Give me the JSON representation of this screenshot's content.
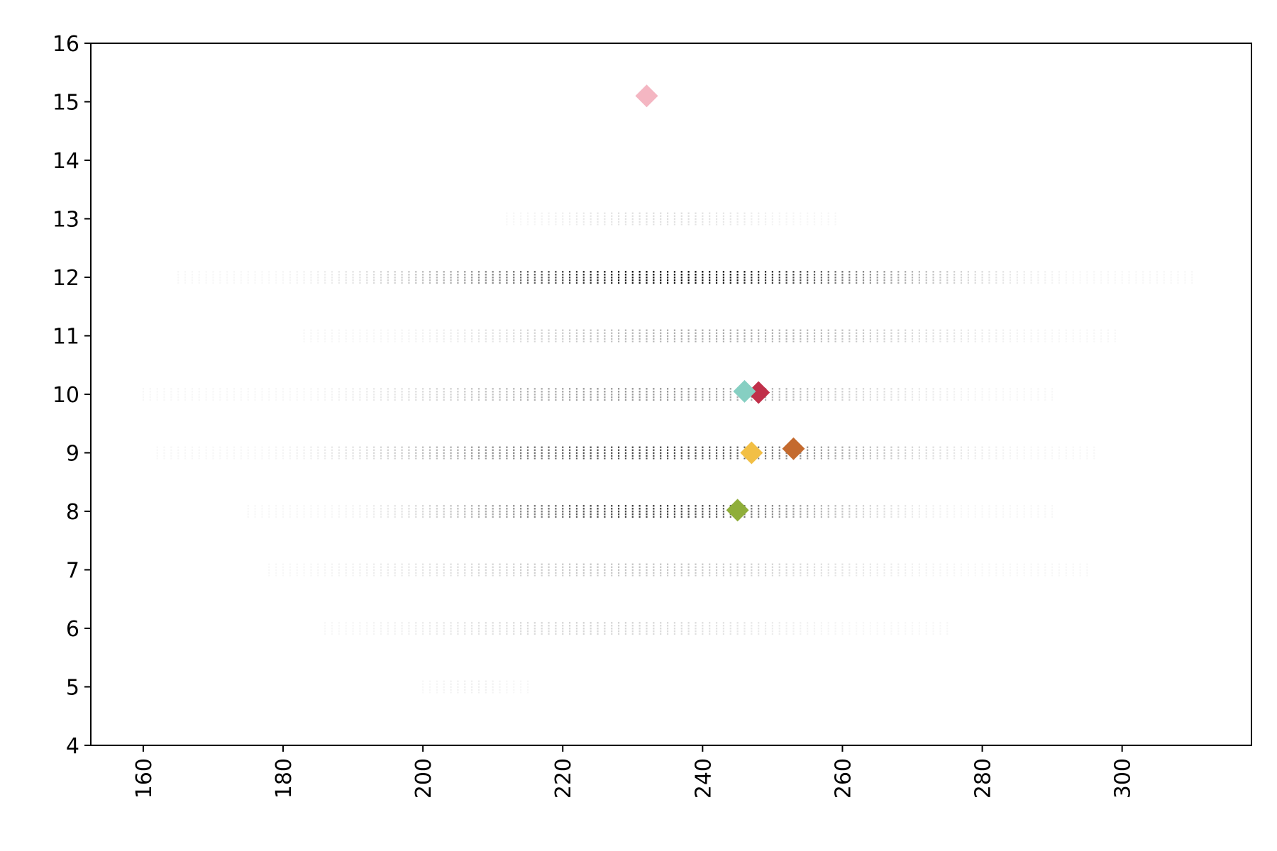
{
  "chart_data": {
    "type": "scatter",
    "title": "",
    "xlabel": "",
    "ylabel": "",
    "xlim": [
      152.5,
      318.5
    ],
    "ylim": [
      4,
      16
    ],
    "x_ticks": [
      160,
      180,
      200,
      220,
      240,
      260,
      280,
      300
    ],
    "y_ticks": [
      4,
      5,
      6,
      7,
      8,
      9,
      10,
      11,
      12,
      13,
      14,
      15,
      16
    ],
    "grid": false,
    "legend": "none",
    "background_bands": {
      "color": "#000000",
      "x_step": 1,
      "rows": [
        {
          "y": 5,
          "x_min": 200,
          "x_max": 215,
          "center": 207,
          "spread": 5,
          "peak": 0.06
        },
        {
          "y": 6,
          "x_min": 186,
          "x_max": 275,
          "center": 225,
          "spread": 20,
          "peak": 0.16
        },
        {
          "y": 7,
          "x_min": 178,
          "x_max": 295,
          "center": 230,
          "spread": 24,
          "peak": 0.22
        },
        {
          "y": 8,
          "x_min": 175,
          "x_max": 290,
          "center": 232,
          "spread": 18,
          "peak": 0.75
        },
        {
          "y": 9,
          "x_min": 162,
          "x_max": 296,
          "center": 232,
          "spread": 22,
          "peak": 0.7
        },
        {
          "y": 10,
          "x_min": 160,
          "x_max": 290,
          "center": 232,
          "spread": 22,
          "peak": 0.4
        },
        {
          "y": 11,
          "x_min": 183,
          "x_max": 299,
          "center": 242,
          "spread": 22,
          "peak": 0.32
        },
        {
          "y": 12,
          "x_min": 165,
          "x_max": 310,
          "center": 236,
          "spread": 22,
          "peak": 0.95
        },
        {
          "y": 13,
          "x_min": 212,
          "x_max": 259,
          "center": 234,
          "spread": 12,
          "peak": 0.12
        }
      ]
    },
    "series": [
      {
        "x": 232,
        "y": 15.1,
        "color": "#f4b6c2"
      },
      {
        "x": 248,
        "y": 10.03,
        "color": "#c0304a"
      },
      {
        "x": 246,
        "y": 10.05,
        "color": "#86cfc2"
      },
      {
        "x": 253,
        "y": 9.07,
        "color": "#c46a2e"
      },
      {
        "x": 247,
        "y": 9.0,
        "color": "#f2bf45"
      },
      {
        "x": 245,
        "y": 8.02,
        "color": "#8fae3a"
      }
    ]
  }
}
